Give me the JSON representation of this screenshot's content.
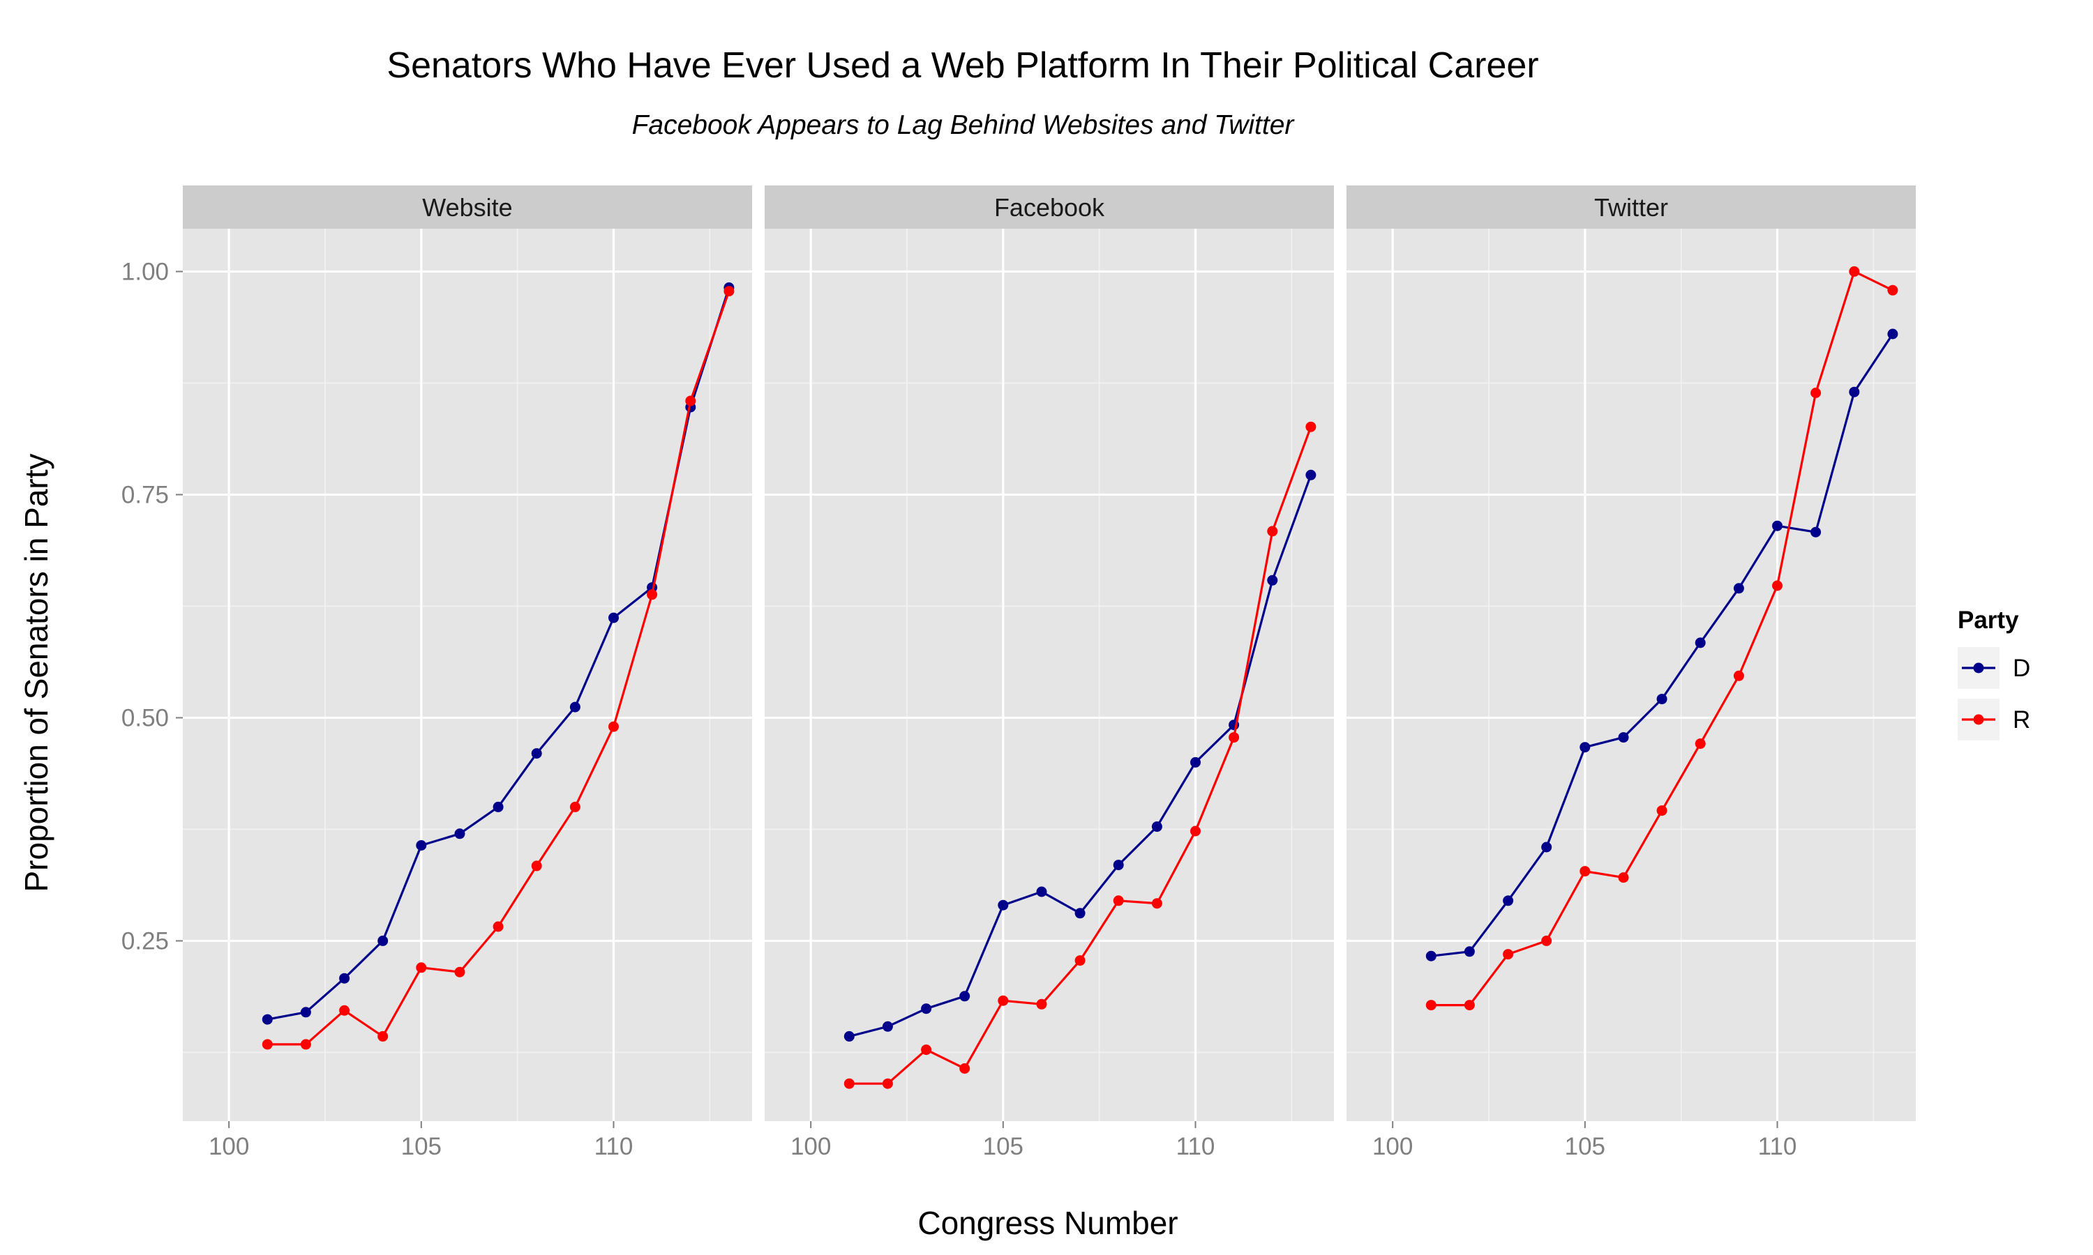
{
  "chart_data": {
    "type": "line",
    "title": "Senators Who Have Ever Used a Web Platform In Their Political Career",
    "subtitle": "Facebook Appears to Lag Behind Websites and Twitter",
    "xlabel": "Congress Number",
    "ylabel": "Proportion of Senators in Party",
    "xlim": [
      98.8,
      113.6
    ],
    "ylim": [
      0.048,
      1.048
    ],
    "x_ticks": [
      100,
      105,
      110
    ],
    "y_ticks": [
      0.25,
      0.5,
      0.75,
      1.0
    ],
    "x_tick_labels": [
      "100",
      "105",
      "110"
    ],
    "y_tick_labels": [
      "0.25",
      "0.50",
      "0.75",
      "1.00"
    ],
    "grid": true,
    "legend": {
      "title": "Party",
      "position": "right",
      "entries": [
        {
          "label": "D",
          "color": "#00008b"
        },
        {
          "label": "R",
          "color": "#ff0000"
        }
      ]
    },
    "x": [
      101,
      102,
      103,
      104,
      105,
      106,
      107,
      108,
      109,
      110,
      111,
      112,
      113
    ],
    "panels": [
      {
        "label": "Website",
        "series": [
          {
            "name": "D",
            "color": "#00008b",
            "x": [
              101,
              102,
              103,
              104,
              105,
              106,
              107,
              108,
              109,
              110,
              111,
              112,
              113
            ],
            "values": [
              0.162,
              0.17,
              0.208,
              0.25,
              0.357,
              0.37,
              0.4,
              0.46,
              0.512,
              0.612,
              0.646,
              0.848,
              0.982
            ]
          },
          {
            "name": "R",
            "color": "#ff0000",
            "x": [
              101,
              102,
              103,
              104,
              105,
              106,
              107,
              108,
              109,
              110,
              111,
              112,
              113
            ],
            "values": [
              0.134,
              0.134,
              0.172,
              0.143,
              0.22,
              0.215,
              0.266,
              0.334,
              0.4,
              0.49,
              0.638,
              0.855,
              0.978
            ]
          }
        ]
      },
      {
        "label": "Facebook",
        "series": [
          {
            "name": "D",
            "color": "#00008b",
            "x": [
              101,
              102,
              103,
              104,
              105,
              106,
              107,
              108,
              109,
              110,
              111,
              112,
              113
            ],
            "values": [
              0.143,
              0.154,
              0.174,
              0.188,
              0.29,
              0.305,
              0.281,
              0.335,
              0.378,
              0.45,
              0.492,
              0.654,
              0.772
            ]
          },
          {
            "name": "R",
            "color": "#ff0000",
            "x": [
              101,
              102,
              103,
              104,
              105,
              106,
              107,
              108,
              109,
              110,
              111,
              112,
              113
            ],
            "values": [
              0.09,
              0.09,
              0.128,
              0.107,
              0.183,
              0.179,
              0.228,
              0.295,
              0.292,
              0.373,
              0.478,
              0.709,
              0.826
            ]
          }
        ]
      },
      {
        "label": "Twitter",
        "series": [
          {
            "name": "D",
            "color": "#00008b",
            "x": [
              101,
              102,
              103,
              104,
              105,
              106,
              107,
              108,
              109,
              110,
              111,
              112,
              113
            ],
            "values": [
              0.233,
              0.238,
              0.295,
              0.355,
              0.467,
              0.478,
              0.521,
              0.584,
              0.645,
              0.715,
              0.708,
              0.865,
              0.93
            ]
          },
          {
            "name": "R",
            "color": "#ff0000",
            "x": [
              101,
              102,
              103,
              104,
              105,
              106,
              107,
              108,
              109,
              110,
              111,
              112,
              113
            ],
            "values": [
              0.178,
              0.178,
              0.235,
              0.25,
              0.328,
              0.321,
              0.396,
              0.471,
              0.547,
              0.648,
              0.864,
              1.0,
              0.979
            ]
          }
        ]
      }
    ]
  }
}
